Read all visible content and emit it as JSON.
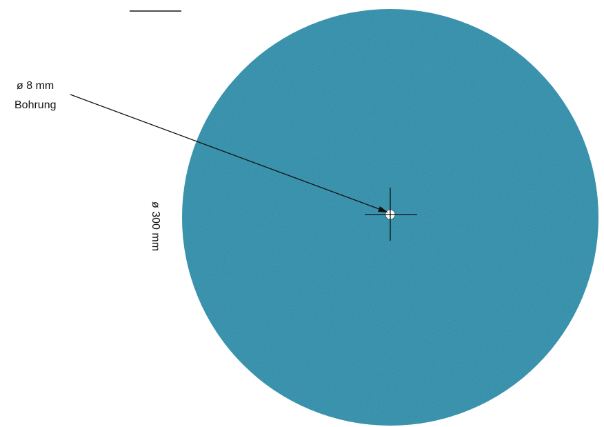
{
  "diagram": {
    "hole_label_line1": "ø 8 mm",
    "hole_label_line2": "Bohrung",
    "diameter_label": "ø 300 mm",
    "disc_color": "#2f8aa6",
    "disc_texture_color": "#1f6f88",
    "line_color": "#111111",
    "hole_color": "#ffffff"
  }
}
